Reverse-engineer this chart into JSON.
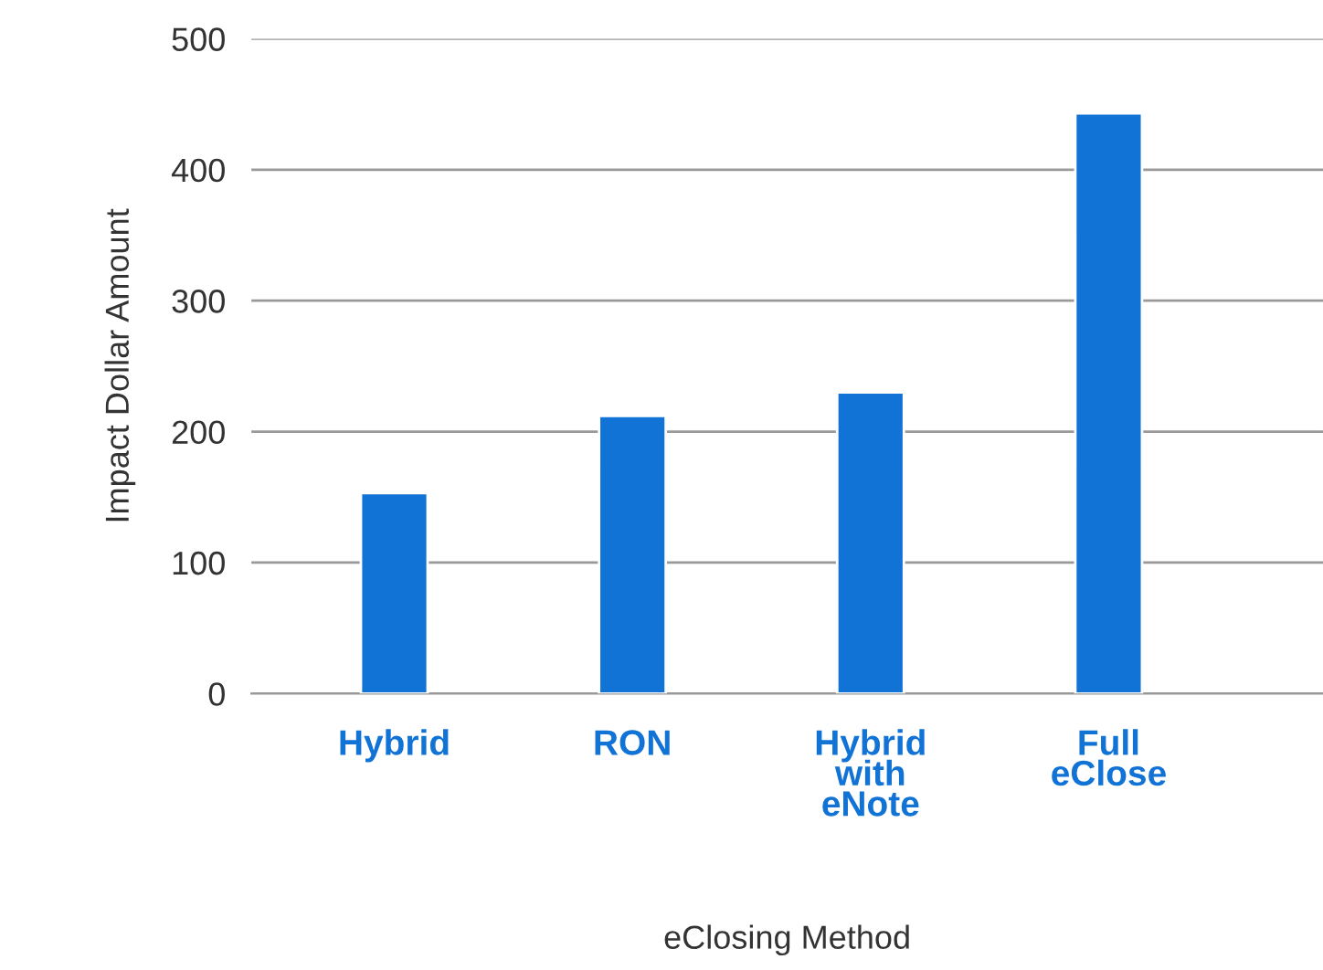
{
  "chart_data": {
    "type": "bar",
    "xlabel": "eClosing Method",
    "ylabel": "Impact Dollar Amount",
    "categories": [
      "Hybrid",
      "RON",
      "Hybrid\nwith\neNote",
      "Full\neClose"
    ],
    "values": [
      153,
      212,
      230,
      443
    ],
    "color": "#1273d6",
    "ylim": [
      0,
      500
    ],
    "yticks": [
      0,
      100,
      200,
      300,
      400,
      500
    ],
    "grid": "y"
  }
}
